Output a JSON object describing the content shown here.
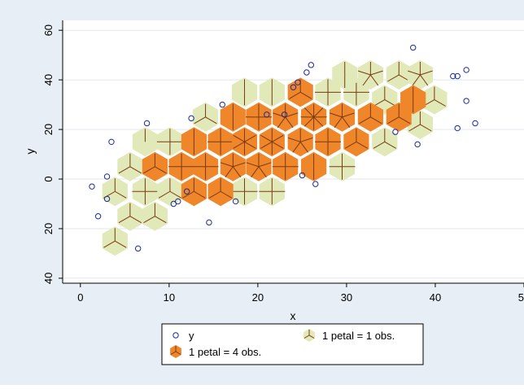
{
  "chart_data": {
    "type": "scatter",
    "title": "",
    "xlabel": "x",
    "ylabel": "y",
    "xlim": [
      -2,
      50
    ],
    "ylim": [
      -42,
      64
    ],
    "x_ticks": [
      {
        "value": 0,
        "label": "0"
      },
      {
        "value": 10,
        "label": "10"
      },
      {
        "value": 20,
        "label": "20"
      },
      {
        "value": 30,
        "label": "30"
      },
      {
        "value": 40,
        "label": "40"
      },
      {
        "value": 50,
        "label": "50"
      }
    ],
    "y_ticks": [
      {
        "value": -40,
        "label": "40"
      },
      {
        "value": -20,
        "label": "20"
      },
      {
        "value": 0,
        "label": "0"
      },
      {
        "value": 20,
        "label": "20"
      },
      {
        "value": 40,
        "label": "40"
      },
      {
        "value": 60,
        "label": "60"
      }
    ],
    "grid": true,
    "legend_position": "bottom",
    "colors": {
      "background": "#e8eef5",
      "plot_bg": "#ffffff",
      "grid": "#e3e6ec",
      "marker": "#1a2a9c",
      "light_hex": "#e1e9b8",
      "dark_hex": "#f0862a",
      "petal": "#7a3a12"
    },
    "legend": [
      {
        "key": "scatter",
        "label": "y"
      },
      {
        "key": "light",
        "label": "1 petal = 1 obs."
      },
      {
        "key": "dark",
        "label": "1 petal = 4 obs."
      }
    ],
    "scatter_points": [
      [
        1.3,
        -3
      ],
      [
        2,
        -15
      ],
      [
        3,
        1
      ],
      [
        3,
        -8
      ],
      [
        3.5,
        15
      ],
      [
        7.5,
        22.5
      ],
      [
        6.5,
        -28
      ],
      [
        10.5,
        -10
      ],
      [
        11,
        -9
      ],
      [
        12,
        -5
      ],
      [
        12.5,
        24.5
      ],
      [
        14.5,
        -17.5
      ],
      [
        16,
        30
      ],
      [
        17.5,
        -9
      ],
      [
        21,
        26
      ],
      [
        23,
        26
      ],
      [
        24,
        37
      ],
      [
        24.5,
        39
      ],
      [
        25,
        1.5
      ],
      [
        25.5,
        43
      ],
      [
        26,
        46
      ],
      [
        26.5,
        -2
      ],
      [
        35.5,
        19
      ],
      [
        37.5,
        53
      ],
      [
        38,
        14
      ],
      [
        42,
        41.5
      ],
      [
        42.5,
        41.5
      ],
      [
        42.5,
        20.5
      ],
      [
        43.5,
        44
      ],
      [
        43.5,
        31.5
      ],
      [
        44.5,
        22.5
      ]
    ],
    "sunflowers": [
      {
        "x": 3.9,
        "y": -25,
        "type": "light",
        "petals": 3
      },
      {
        "x": 3.9,
        "y": -5,
        "type": "light",
        "petals": 3
      },
      {
        "x": 5.6,
        "y": -15,
        "type": "light",
        "petals": 3
      },
      {
        "x": 5.6,
        "y": 5,
        "type": "light",
        "petals": 3
      },
      {
        "x": 7.3,
        "y": -5,
        "type": "light",
        "petals": 4
      },
      {
        "x": 7.3,
        "y": 15,
        "type": "light",
        "petals": 1
      },
      {
        "x": 8.4,
        "y": 5,
        "type": "dark",
        "petals": 3
      },
      {
        "x": 8.4,
        "y": -15,
        "type": "light",
        "petals": 3
      },
      {
        "x": 10.1,
        "y": -5,
        "type": "light",
        "petals": 3
      },
      {
        "x": 10.1,
        "y": 15,
        "type": "light",
        "petals": 4
      },
      {
        "x": 11.4,
        "y": 5,
        "type": "dark",
        "petals": 4
      },
      {
        "x": 12.8,
        "y": -5,
        "type": "dark",
        "petals": 3
      },
      {
        "x": 12.8,
        "y": 15,
        "type": "dark",
        "petals": 2
      },
      {
        "x": 14.1,
        "y": 5,
        "type": "dark",
        "petals": 4
      },
      {
        "x": 14.1,
        "y": 25,
        "type": "light",
        "petals": 3
      },
      {
        "x": 15.8,
        "y": -5,
        "type": "dark",
        "petals": 3
      },
      {
        "x": 15.8,
        "y": 15,
        "type": "dark",
        "petals": 4
      },
      {
        "x": 17.2,
        "y": 5,
        "type": "dark",
        "petals": 5
      },
      {
        "x": 17.2,
        "y": 25,
        "type": "dark",
        "petals": 2
      },
      {
        "x": 18.5,
        "y": -5,
        "type": "light",
        "petals": 4
      },
      {
        "x": 18.5,
        "y": 15,
        "type": "dark",
        "petals": 6
      },
      {
        "x": 18.5,
        "y": 35,
        "type": "light",
        "petals": 2
      },
      {
        "x": 20.1,
        "y": 5,
        "type": "dark",
        "petals": 5
      },
      {
        "x": 20.1,
        "y": 25,
        "type": "dark",
        "petals": 4
      },
      {
        "x": 21.6,
        "y": -5,
        "type": "light",
        "petals": 4
      },
      {
        "x": 21.6,
        "y": 15,
        "type": "dark",
        "petals": 6
      },
      {
        "x": 21.6,
        "y": 35,
        "type": "light",
        "petals": 2
      },
      {
        "x": 23.1,
        "y": 5,
        "type": "dark",
        "petals": 4
      },
      {
        "x": 23.1,
        "y": 25,
        "type": "dark",
        "petals": 5
      },
      {
        "x": 24.8,
        "y": 15,
        "type": "dark",
        "petals": 5
      },
      {
        "x": 24.8,
        "y": 35,
        "type": "dark",
        "petals": 3
      },
      {
        "x": 26.3,
        "y": 5,
        "type": "dark",
        "petals": 2
      },
      {
        "x": 26.3,
        "y": 25,
        "type": "dark",
        "petals": 8
      },
      {
        "x": 27.9,
        "y": 15,
        "type": "dark",
        "petals": 4
      },
      {
        "x": 27.9,
        "y": 35,
        "type": "light",
        "petals": 4
      },
      {
        "x": 29.5,
        "y": 5,
        "type": "light",
        "petals": 4
      },
      {
        "x": 29.5,
        "y": 25,
        "type": "dark",
        "petals": 5
      },
      {
        "x": 31.1,
        "y": 15,
        "type": "dark",
        "petals": 3
      },
      {
        "x": 31.1,
        "y": 35,
        "type": "light",
        "petals": 4
      },
      {
        "x": 29.8,
        "y": 42,
        "type": "light",
        "petals": 2
      },
      {
        "x": 32.7,
        "y": 25,
        "type": "dark",
        "petals": 3
      },
      {
        "x": 32.7,
        "y": 42,
        "type": "light",
        "petals": 5
      },
      {
        "x": 34.3,
        "y": 15,
        "type": "light",
        "petals": 3
      },
      {
        "x": 34.3,
        "y": 32,
        "type": "light",
        "petals": 3
      },
      {
        "x": 35.9,
        "y": 25,
        "type": "dark",
        "petals": 3
      },
      {
        "x": 35.9,
        "y": 42,
        "type": "light",
        "petals": 3
      },
      {
        "x": 37.5,
        "y": 32,
        "type": "dark",
        "petals": 2
      },
      {
        "x": 38.3,
        "y": 22,
        "type": "light",
        "petals": 3
      },
      {
        "x": 38.3,
        "y": 42,
        "type": "light",
        "petals": 5
      },
      {
        "x": 39.9,
        "y": 32,
        "type": "light",
        "petals": 3
      }
    ]
  }
}
